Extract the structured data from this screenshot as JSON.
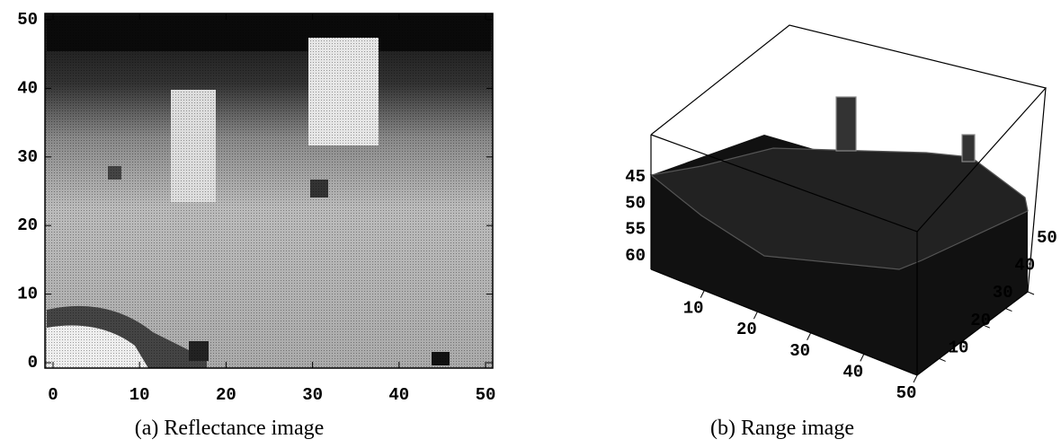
{
  "panels": [
    {
      "caption": "(a) Reflectance image",
      "xticks": [
        0,
        10,
        20,
        30,
        40,
        50
      ],
      "yticks": [
        0,
        10,
        20,
        30,
        40,
        50
      ]
    },
    {
      "caption": "(b) Range image",
      "zticks": [
        45,
        50,
        55,
        60
      ],
      "xticks": [
        10,
        20,
        30,
        40,
        50
      ],
      "yticks": [
        10,
        20,
        30,
        40,
        50
      ]
    }
  ]
}
